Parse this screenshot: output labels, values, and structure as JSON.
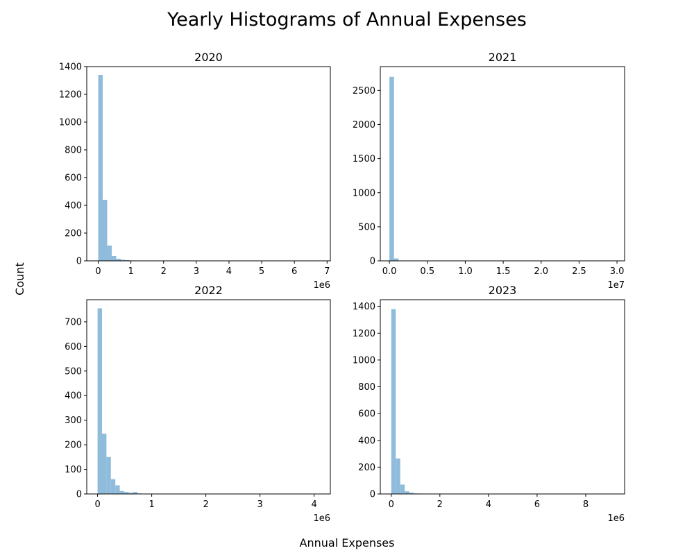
{
  "figure": {
    "title": "Yearly Histograms of Annual Expenses",
    "xlabel": "Annual Expenses",
    "ylabel": "Count",
    "bar_color": "#8fbcdb"
  },
  "chart_data": [
    {
      "type": "histogram",
      "title": "2020",
      "xlim": [
        -0.35,
        7.1
      ],
      "ylim": [
        0,
        1400
      ],
      "x_offset_label": "1e6",
      "x_ticks": [
        0,
        1,
        2,
        3,
        4,
        5,
        6,
        7
      ],
      "x_tick_labels": [
        "0",
        "1",
        "2",
        "3",
        "4",
        "5",
        "6",
        "7"
      ],
      "y_ticks": [
        0,
        200,
        400,
        600,
        800,
        1000,
        1200,
        1400
      ],
      "y_tick_labels": [
        "0",
        "200",
        "400",
        "600",
        "800",
        "1000",
        "1200",
        "1400"
      ],
      "bin_start": 0.0,
      "bin_width": 0.138,
      "counts": [
        1340,
        440,
        110,
        35,
        15,
        8,
        5,
        3,
        2,
        1,
        1
      ]
    },
    {
      "type": "histogram",
      "title": "2021",
      "xlim": [
        -0.12,
        3.1
      ],
      "ylim": [
        0,
        2850
      ],
      "x_offset_label": "1e7",
      "x_ticks": [
        0,
        0.5,
        1.0,
        1.5,
        2.0,
        2.5,
        3.0
      ],
      "x_tick_labels": [
        "0.0",
        "0.5",
        "1.0",
        "1.5",
        "2.0",
        "2.5",
        "3.0"
      ],
      "y_ticks": [
        0,
        500,
        1000,
        1500,
        2000,
        2500
      ],
      "y_tick_labels": [
        "0",
        "500",
        "1000",
        "1500",
        "2000",
        "2500"
      ],
      "bin_start": 0.0,
      "bin_width": 0.0605,
      "counts": [
        2700,
        35,
        5,
        2
      ]
    },
    {
      "type": "histogram",
      "title": "2022",
      "xlim": [
        -0.2,
        4.3
      ],
      "ylim": [
        0,
        790
      ],
      "x_offset_label": "1e6",
      "x_ticks": [
        0,
        1,
        2,
        3,
        4
      ],
      "x_tick_labels": [
        "0",
        "1",
        "2",
        "3",
        "4"
      ],
      "y_ticks": [
        0,
        100,
        200,
        300,
        400,
        500,
        600,
        700
      ],
      "y_tick_labels": [
        "0",
        "100",
        "200",
        "300",
        "400",
        "500",
        "600",
        "700"
      ],
      "bin_start": 0.0,
      "bin_width": 0.082,
      "counts": [
        755,
        245,
        150,
        60,
        35,
        12,
        8,
        5,
        8,
        2,
        1
      ]
    },
    {
      "type": "histogram",
      "title": "2023",
      "xlim": [
        -0.45,
        9.6
      ],
      "ylim": [
        0,
        1450
      ],
      "x_offset_label": "1e6",
      "x_ticks": [
        0,
        2,
        4,
        6,
        8
      ],
      "x_tick_labels": [
        "0",
        "2",
        "4",
        "6",
        "8"
      ],
      "y_ticks": [
        0,
        200,
        400,
        600,
        800,
        1000,
        1200,
        1400
      ],
      "y_tick_labels": [
        "0",
        "200",
        "400",
        "600",
        "800",
        "1000",
        "1200",
        "1400"
      ],
      "bin_start": 0.0,
      "bin_width": 0.185,
      "counts": [
        1380,
        265,
        70,
        20,
        10,
        4,
        3,
        2,
        1
      ]
    }
  ]
}
